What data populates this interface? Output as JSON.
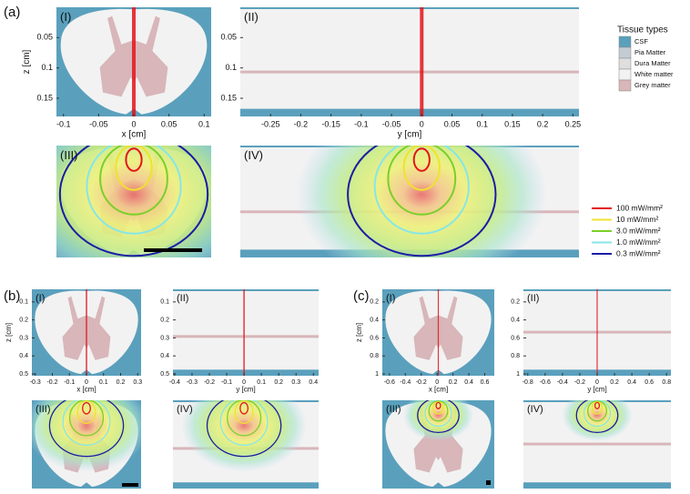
{
  "figure": {
    "panels": [
      {
        "label": "(a)",
        "views": [
          {
            "label": "(I)",
            "xlabel": "x [cm]",
            "ylabel": "z [cm]",
            "xlim": [
              -0.11,
              0.11
            ],
            "ylim": [
              0,
              0.18
            ],
            "xticks": [
              -0.1,
              -0.05,
              0,
              0.05,
              0.1
            ],
            "yticks": [
              0.05,
              0.1,
              0.15
            ]
          },
          {
            "label": "(II)",
            "xlabel": "y [cm]",
            "xlim": [
              -0.3,
              0.26
            ],
            "ylim": [
              0,
              0.18
            ],
            "xticks": [
              -0.25,
              -0.2,
              -0.15,
              -0.1,
              -0.05,
              0,
              0.05,
              0.1,
              0.15,
              0.2,
              0.25
            ],
            "yticks": [
              0.05,
              0.1,
              0.15
            ]
          },
          {
            "label": "(III)"
          },
          {
            "label": "(IV)"
          }
        ]
      },
      {
        "label": "(b)",
        "views": [
          {
            "label": "(I)",
            "xlabel": "x [cm]",
            "ylabel": "z [cm]",
            "xlim": [
              -0.32,
              0.32
            ],
            "ylim": [
              0.03,
              0.51
            ],
            "xticks": [
              -0.3,
              -0.2,
              -0.1,
              0,
              0.1,
              0.2,
              0.3
            ],
            "yticks": [
              0.1,
              0.2,
              0.3,
              0.4,
              0.5
            ]
          },
          {
            "label": "(II)",
            "xlabel": "y [cm]",
            "xlim": [
              -0.41,
              0.43
            ],
            "ylim": [
              0.03,
              0.51
            ],
            "xticks": [
              -0.4,
              -0.3,
              -0.2,
              -0.1,
              0,
              0.1,
              0.2,
              0.3,
              0.4
            ],
            "yticks": [
              0.1,
              0.2,
              0.3,
              0.4,
              0.5
            ]
          },
          {
            "label": "(III)"
          },
          {
            "label": "(IV)"
          }
        ]
      },
      {
        "label": "(c)",
        "views": [
          {
            "label": "(I)",
            "xlabel": "x [cm]",
            "ylabel": "z [cm]",
            "xlim": [
              -0.69,
              0.72
            ],
            "ylim": [
              0.06,
              1.02
            ],
            "xticks": [
              -0.6,
              -0.4,
              -0.2,
              0,
              0.2,
              0.4,
              0.6
            ],
            "yticks": [
              0.2,
              0.4,
              0.6,
              0.8,
              1
            ]
          },
          {
            "label": "(II)",
            "xlabel": "y [cm]",
            "xlim": [
              -0.85,
              0.85
            ],
            "ylim": [
              0.06,
              1.02
            ],
            "xticks": [
              -0.8,
              -0.6,
              -0.4,
              -0.2,
              0,
              0.2,
              0.4,
              0.6,
              0.8
            ],
            "yticks": [
              0.2,
              0.4,
              0.6,
              0.8,
              1
            ]
          },
          {
            "label": "(III)"
          },
          {
            "label": "(IV)"
          }
        ]
      }
    ],
    "tissue_legend": {
      "title": "Tissue types",
      "items": [
        {
          "name": "CSF",
          "color": "#5aa0bd"
        },
        {
          "name": "Pia Matter",
          "color": "#c3ccd3"
        },
        {
          "name": "Dura Matter",
          "color": "#dedede"
        },
        {
          "name": "White matter",
          "color": "#f2f2f2"
        },
        {
          "name": "Grey matter",
          "color": "#d8b6b9"
        }
      ]
    },
    "irradiance_legend": {
      "items": [
        {
          "name": "100 mW/mm²",
          "color": "#e3141b"
        },
        {
          "name": "10 mW/mm²",
          "color": "#f0e22e"
        },
        {
          "name": "3.0 mW/mm²",
          "color": "#7ccf2a"
        },
        {
          "name": "1.0 mW/mm²",
          "color": "#86e6e8"
        },
        {
          "name": "0.3 mW/mm²",
          "color": "#1c1ca6"
        }
      ]
    }
  }
}
